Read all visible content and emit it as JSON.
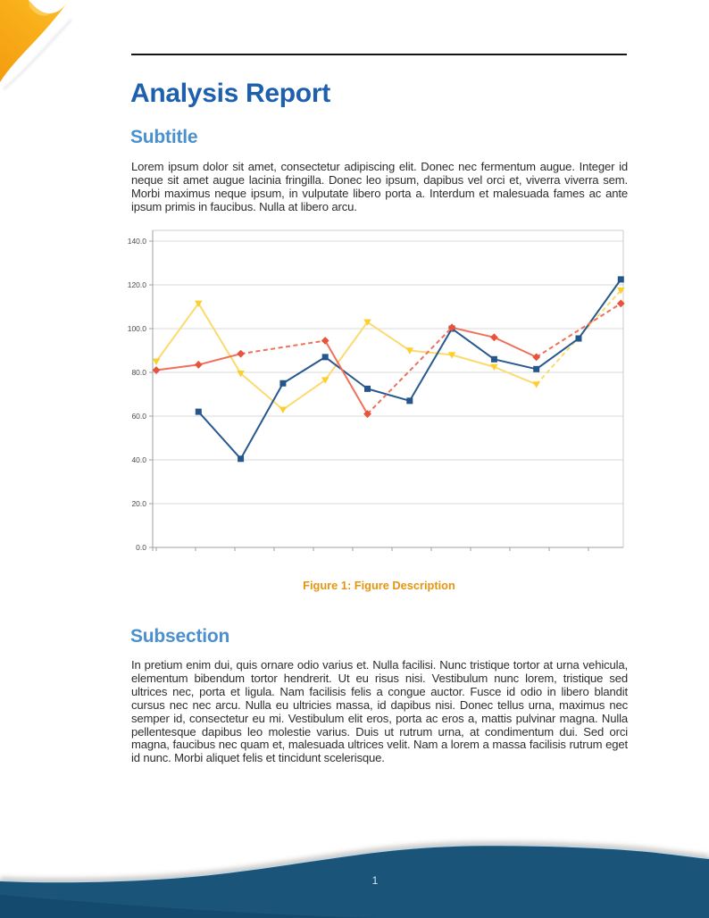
{
  "title": "Analysis Report",
  "sections": [
    {
      "heading": "Subtitle",
      "body": "Lorem ipsum dolor sit amet, consectetur adipiscing elit. Donec nec fermentum augue. Integer id neque sit amet augue lacinia fringilla. Donec leo ipsum, dapibus vel orci et, viverra viverra sem. Morbi maximus neque ipsum, in vulputate libero porta a. Interdum et malesuada fames ac ante ipsum primis in faucibus. Nulla at libero arcu."
    },
    {
      "heading": "Subsection",
      "body": "In pretium enim dui, quis ornare odio varius et. Nulla facilisi. Nunc tristique tortor at urna vehicula, elementum bibendum tortor hendrerit. Ut eu risus nisi. Vestibulum nunc lorem, tristique sed ultrices nec, porta et ligula. Nam facilisis felis a congue auctor. Fusce id odio in libero blandit cursus nec nec arcu. Nulla eu ultricies massa, id dapibus nisi. Donec tellus urna, maximus nec semper id, consectetur eu mi. Vestibulum elit eros, porta ac eros a, mattis pulvinar magna. Nulla pellentesque dapibus leo molestie varius. Duis ut rutrum urna, at condimentum dui. Sed orci magna, faucibus nec quam et, malesuada ultrices velit. Nam a lorem a massa facilisis rutrum eget id nunc. Morbi aliquet felis et tincidunt scelerisque."
    }
  ],
  "figure": {
    "caption": "Figure 1: Figure Description"
  },
  "footer": {
    "page_number": "1"
  },
  "colors": {
    "title_blue": "#1e5fae",
    "heading_blue": "#4a90ce",
    "caption_orange": "#e6950e",
    "footer_navy": "#1a5479",
    "corner_orange": "#f5a317",
    "grid_gray": "#dadada",
    "axis_gray": "#9aa0a6"
  },
  "chart_data": {
    "type": "line",
    "x": [
      1,
      2,
      3,
      4,
      5,
      6,
      7,
      8,
      9,
      10,
      11,
      12
    ],
    "x_labels": [],
    "series": [
      {
        "name": "yellow-series",
        "marker": "triangle-down",
        "line_color": "#fbda6e",
        "marker_color": "#fdcf2e",
        "values": [
          85,
          111.5,
          79.5,
          63,
          76.5,
          103,
          90,
          88,
          82.5,
          74.5,
          null,
          117.5
        ],
        "gap_style": "dashed"
      },
      {
        "name": "blue-series",
        "marker": "square",
        "line_color": "#27598e",
        "marker_color": "#24568b",
        "values": [
          null,
          62,
          40.5,
          75,
          87,
          72.5,
          67,
          100,
          86,
          81.5,
          95.5,
          122.5
        ],
        "gap_style": "dashed"
      },
      {
        "name": "red-series",
        "marker": "diamond",
        "line_color": "#f0705a",
        "marker_color": "#e7543b",
        "values": [
          81,
          83.5,
          88.5,
          null,
          94.5,
          61,
          null,
          100.5,
          96,
          87,
          null,
          111.5
        ],
        "gap_style": "dashed"
      }
    ],
    "title": "",
    "xlabel": "",
    "ylabel": "",
    "ylim": [
      0,
      145
    ],
    "yticks": [
      0,
      20,
      40,
      60,
      80,
      100,
      120,
      140
    ],
    "ytick_labels": [
      "0.0",
      "20.0",
      "40.0",
      "60.0",
      "80.0",
      "100.0",
      "120.0",
      "140.0"
    ],
    "grid": true,
    "legend": "none"
  }
}
